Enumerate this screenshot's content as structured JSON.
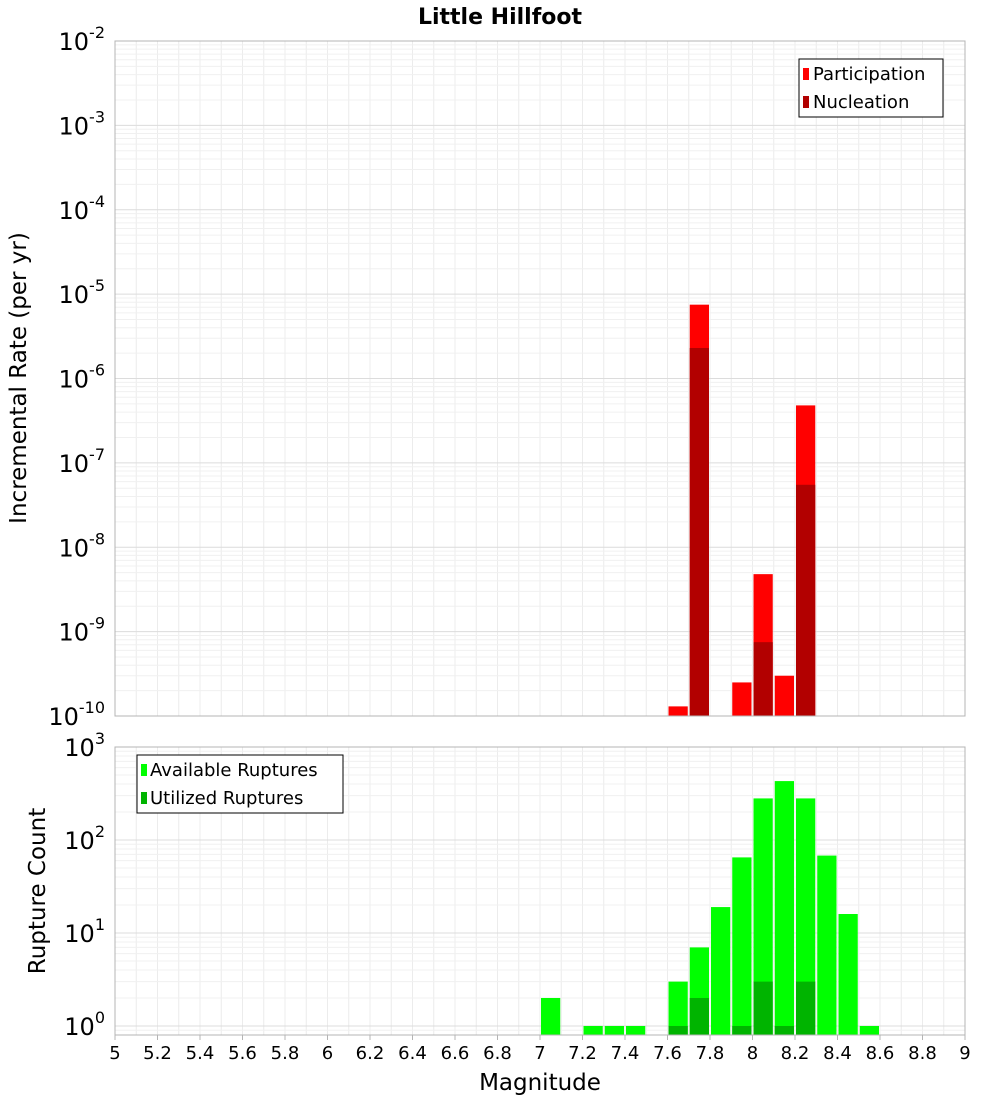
{
  "chart_data": [
    {
      "type": "bar",
      "title": "Little Hillfoot",
      "xlabel": "",
      "ylabel": "Incremental Rate (per yr)",
      "xlim": [
        5,
        9
      ],
      "ylim_exponents": [
        -10,
        -2
      ],
      "yscale": "log",
      "y_tick_exponents": [
        -10,
        -9,
        -8,
        -7,
        -6,
        -5,
        -4,
        -3,
        -2
      ],
      "grid": true,
      "legend_position": "top-right",
      "bar_width": 0.1,
      "series": [
        {
          "name": "Participation",
          "color": "#ff0000",
          "points": [
            {
              "x": 7.65,
              "y": 1.3e-10
            },
            {
              "x": 7.75,
              "y": 7.5e-06
            },
            {
              "x": 7.95,
              "y": 2.5e-10
            },
            {
              "x": 8.05,
              "y": 4.8e-09
            },
            {
              "x": 8.15,
              "y": 3e-10
            },
            {
              "x": 8.25,
              "y": 4.8e-07
            }
          ]
        },
        {
          "name": "Nucleation",
          "color": "#b20000",
          "points": [
            {
              "x": 7.75,
              "y": 2.3e-06
            },
            {
              "x": 8.05,
              "y": 7.5e-10
            },
            {
              "x": 8.25,
              "y": 5.5e-08
            }
          ]
        }
      ]
    },
    {
      "type": "bar",
      "xlabel": "Magnitude",
      "ylabel": "Rupture Count",
      "xlim": [
        5,
        9
      ],
      "ylim": [
        0.8,
        1000
      ],
      "yscale": "log",
      "y_tick_exponents": [
        0,
        1,
        2,
        3
      ],
      "x_ticks": [
        "5",
        "5.2",
        "5.4",
        "5.6",
        "5.8",
        "6",
        "6.2",
        "6.4",
        "6.6",
        "6.8",
        "7",
        "7.2",
        "7.4",
        "7.6",
        "7.8",
        "8",
        "8.2",
        "8.4",
        "8.6",
        "8.8",
        "9"
      ],
      "grid": true,
      "legend_position": "top-left",
      "bar_width": 0.1,
      "series": [
        {
          "name": "Available Ruptures",
          "color": "#00ff00",
          "points": [
            {
              "x": 7.05,
              "y": 2
            },
            {
              "x": 7.25,
              "y": 1
            },
            {
              "x": 7.35,
              "y": 1
            },
            {
              "x": 7.45,
              "y": 1
            },
            {
              "x": 7.65,
              "y": 3
            },
            {
              "x": 7.75,
              "y": 7
            },
            {
              "x": 7.85,
              "y": 19
            },
            {
              "x": 7.95,
              "y": 65
            },
            {
              "x": 8.05,
              "y": 280
            },
            {
              "x": 8.15,
              "y": 430
            },
            {
              "x": 8.25,
              "y": 280
            },
            {
              "x": 8.35,
              "y": 68
            },
            {
              "x": 8.45,
              "y": 16
            },
            {
              "x": 8.55,
              "y": 1
            }
          ]
        },
        {
          "name": "Utilized Ruptures",
          "color": "#00b400",
          "points": [
            {
              "x": 7.65,
              "y": 1
            },
            {
              "x": 7.75,
              "y": 2
            },
            {
              "x": 7.95,
              "y": 1
            },
            {
              "x": 8.05,
              "y": 3
            },
            {
              "x": 8.15,
              "y": 1
            },
            {
              "x": 8.25,
              "y": 3
            }
          ]
        }
      ]
    }
  ]
}
